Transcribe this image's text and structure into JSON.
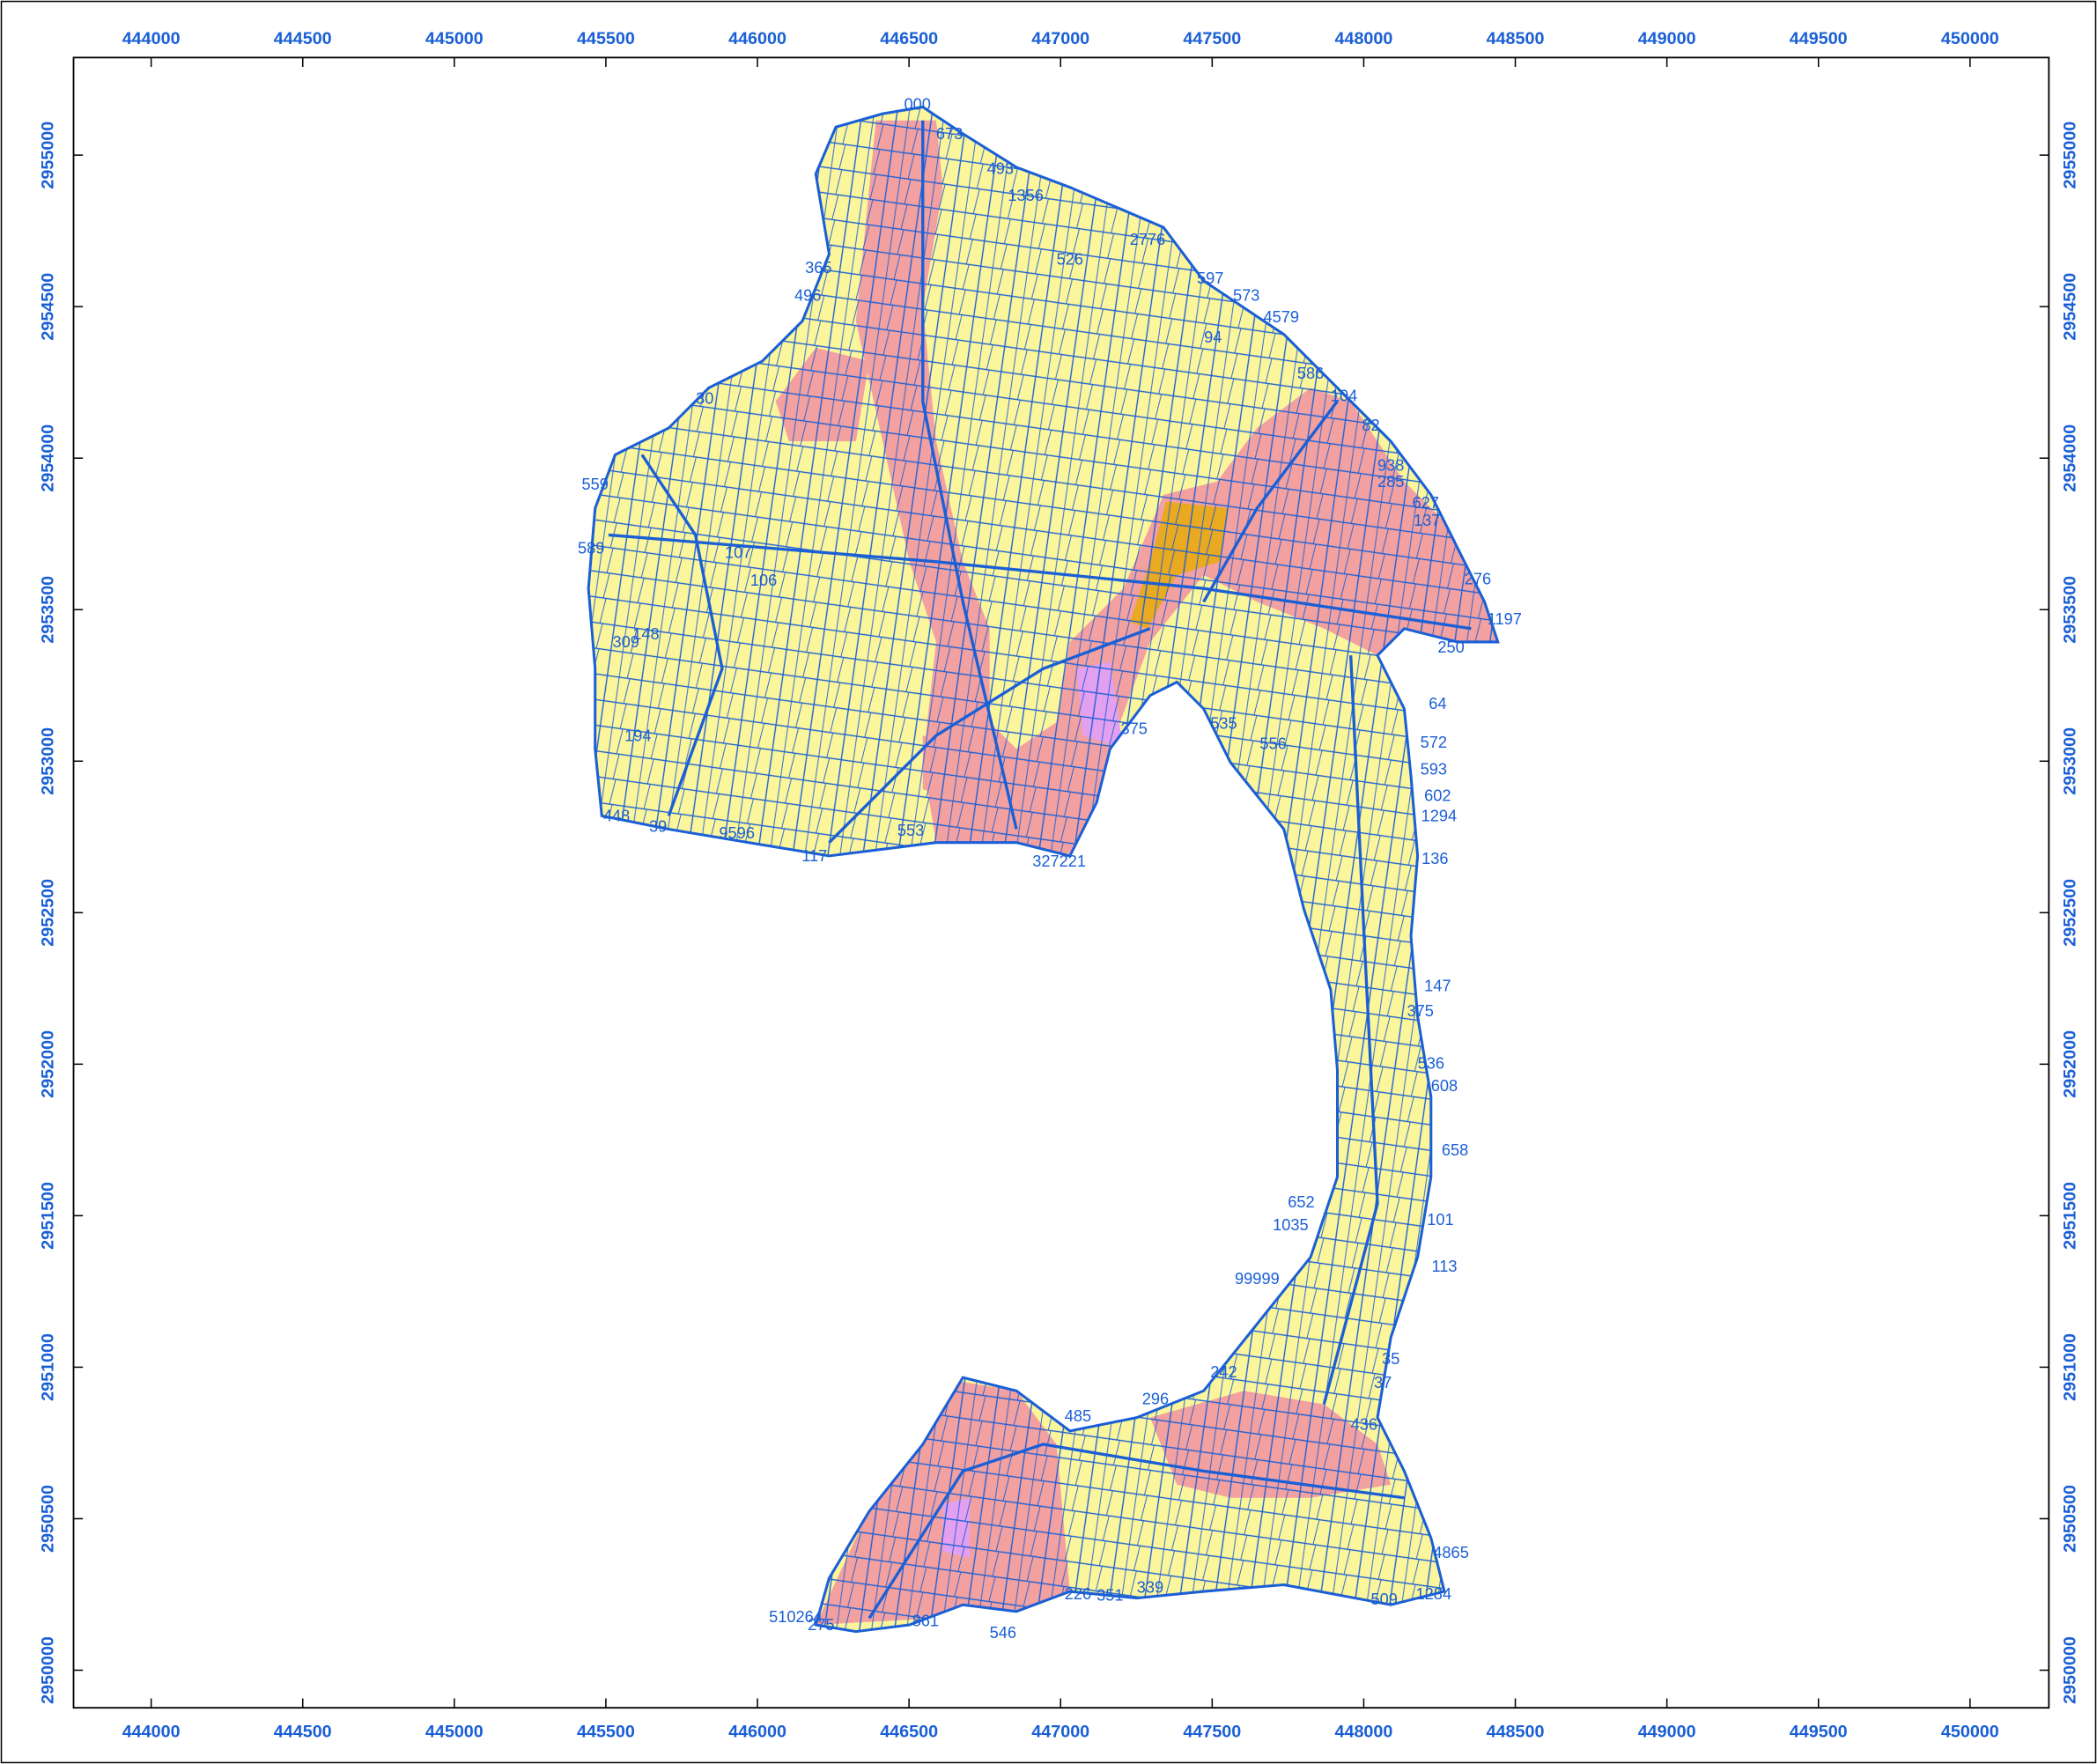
{
  "map": {
    "xlim": [
      443744,
      450260
    ],
    "ylim": [
      2949876,
      2955322
    ],
    "xticks": [
      444000,
      444500,
      445000,
      445500,
      446000,
      446500,
      447000,
      447500,
      448000,
      448500,
      449000,
      449500,
      450000
    ],
    "yticks": [
      2950000,
      2950500,
      2951000,
      2951500,
      2952000,
      2952500,
      2953000,
      2953500,
      2954000,
      2954500,
      2955000
    ],
    "parcel_fill": "#fbf59b",
    "highlight_fill": "#f2a0a0",
    "special_fill": "#e9a920",
    "line_color": "#1a5fd6",
    "parcel_labels": [
      "000",
      "673",
      "493",
      "1356",
      "2776",
      "526",
      "597",
      "573",
      "4579",
      "94",
      "586",
      "104",
      "82",
      "938",
      "285",
      "627",
      "137",
      "276",
      "1197",
      "250",
      "64",
      "572",
      "593",
      "602",
      "1294",
      "136",
      "147",
      "375",
      "536",
      "608",
      "658",
      "101",
      "113",
      "365",
      "496",
      "30",
      "559",
      "589",
      "107",
      "106",
      "148",
      "309",
      "194",
      "448",
      "39",
      "9596",
      "117",
      "553",
      "327221",
      "375",
      "535",
      "556",
      "652",
      "1035",
      "99999",
      "242",
      "485",
      "296",
      "546",
      "339",
      "351",
      "226",
      "861",
      "275",
      "510264",
      "509",
      "1284",
      "4865",
      "436",
      "35",
      "37"
    ]
  }
}
